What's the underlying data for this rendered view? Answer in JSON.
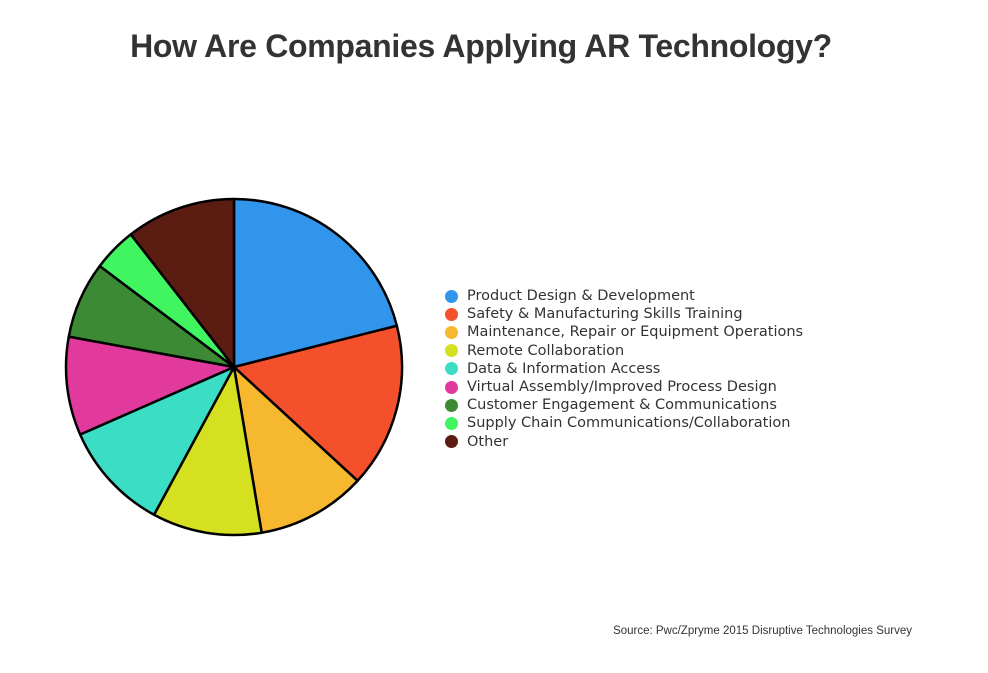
{
  "chart_data": {
    "type": "pie",
    "title": "How Are Companies Applying AR Technology?",
    "source": "Source: Pwc/Zpryme 2015 Disruptive Technologies Survey",
    "legend_position": "right",
    "slices": [
      {
        "label": "Product Design & Development",
        "value": 20.0,
        "color": "#3195EB"
      },
      {
        "label": "Safety & Manufacturing Skills Training",
        "value": 15.0,
        "color": "#F5502C"
      },
      {
        "label": "Maintenance, Repair or Equipment Operations",
        "value": 10.0,
        "color": "#F5B82E"
      },
      {
        "label": "Remote Collaboration",
        "value": 10.0,
        "color": "#D5E021"
      },
      {
        "label": "Data & Information Access",
        "value": 10.0,
        "color": "#3BDDC4"
      },
      {
        "label": "Virtual Assembly/Improved Process Design",
        "value": 9.0,
        "color": "#E23A9C"
      },
      {
        "label": "Customer Engagement & Communications",
        "value": 7.0,
        "color": "#3D8A35"
      },
      {
        "label": "Supply Chain Communications/Collaboration",
        "value": 4.0,
        "color": "#40F560"
      },
      {
        "label": "Other",
        "value": 10.0,
        "color": "#5B1C12"
      }
    ]
  }
}
